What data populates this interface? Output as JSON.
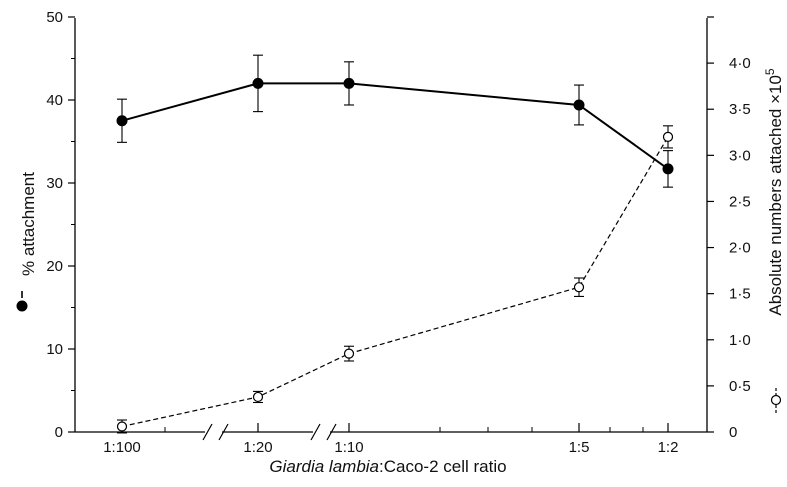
{
  "chart_data": {
    "type": "line",
    "categories": [
      "1:100",
      "1:20",
      "1:10",
      "1:5",
      "1:2"
    ],
    "xlabel_italic": "Giardia lambia",
    "xlabel_rest": ":Caco-2 cell ratio",
    "ylabel_left": "% attachment",
    "ylabel_right": "Absolute numbers attached ×10",
    "ylabel_right_exponent": "5",
    "ylim_left": [
      0,
      50
    ],
    "ylim_right": [
      0,
      4.5
    ],
    "left_ticks": [
      "0",
      "10",
      "20",
      "30",
      "40",
      "50"
    ],
    "right_ticks": [
      "0",
      "0·5",
      "1·0",
      "1·5",
      "2·0",
      "2·5",
      "3·0",
      "3·5",
      "4·0"
    ],
    "series": [
      {
        "axis": "left",
        "style": "solid",
        "marker": "filled-circle",
        "values": [
          37.5,
          42.0,
          42.0,
          39.4,
          31.7
        ],
        "error": [
          2.6,
          3.4,
          2.6,
          2.4,
          2.2
        ]
      },
      {
        "axis": "right",
        "style": "dashed",
        "marker": "open-circle",
        "values": [
          0.06,
          0.38,
          0.85,
          1.57,
          3.2
        ],
        "error": [
          0.07,
          0.06,
          0.08,
          0.1,
          0.12
        ]
      }
    ],
    "colors": {
      "line": "#000000",
      "background": "#ffffff"
    },
    "grid": false
  }
}
